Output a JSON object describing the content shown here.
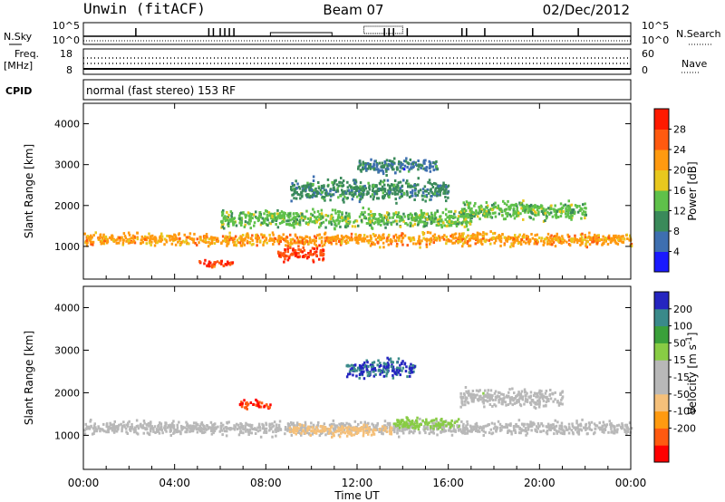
{
  "header": {
    "station": "Unwin (fitACF)",
    "beam": "Beam 07",
    "date": "02/Dec/2012"
  },
  "strips": {
    "nsky_label": "N.Sky",
    "nsky_ticks": [
      "10^5",
      "10^0"
    ],
    "nsearch_label": "N.Search",
    "nsearch_ticks": [
      "10^5",
      "10^0"
    ],
    "freq_label": "Freq.",
    "freq_unit": "[MHz]",
    "freq_ticks": [
      "18",
      "8"
    ],
    "nave_label": "Nave",
    "nave_ticks": [
      "60",
      "0"
    ],
    "cpid_label": "CPID",
    "cpid_text": "normal (fast stereo) 153 RF"
  },
  "colors": {
    "power": [
      "#1a1aff",
      "#3e6fb0",
      "#3a8a5a",
      "#5fc14a",
      "#e8c81e",
      "#ff9a10",
      "#ff5a10",
      "#ff1a00"
    ],
    "velocity": [
      "#ff0000",
      "#ff5a10",
      "#ff9a10",
      "#f5c07a",
      "#b8b8b8",
      "#b8b8b8",
      "#88cc44",
      "#3aa03a",
      "#3a8a8a",
      "#2525c0"
    ]
  },
  "chart_data": [
    {
      "type": "heatmap",
      "title": "",
      "xlabel": "",
      "ylabel": "Slant Range [km]",
      "xlim": [
        "00:00",
        "24:00"
      ],
      "ylim": [
        200,
        4500
      ],
      "yticks": [
        "1000",
        "2000",
        "3000",
        "4000"
      ],
      "colorbar": {
        "label": "Power [dB]",
        "ticks": [
          "4",
          "8",
          "12",
          "16",
          "20",
          "24",
          "28"
        ],
        "range": [
          0,
          32
        ]
      },
      "scatter_bands": [
        {
          "t0": 0.0,
          "t1": 24.0,
          "center_km": 1200,
          "width_km": 220,
          "value": 22
        },
        {
          "t0": 5.0,
          "t1": 6.5,
          "center_km": 600,
          "width_km": 120,
          "value": 28
        },
        {
          "t0": 8.5,
          "t1": 10.5,
          "center_km": 850,
          "width_km": 250,
          "value": 28
        },
        {
          "t0": 6.0,
          "t1": 17.0,
          "center_km": 1700,
          "width_km": 300,
          "value": 14
        },
        {
          "t0": 9.0,
          "t1": 16.0,
          "center_km": 2400,
          "width_km": 350,
          "value": 10
        },
        {
          "t0": 12.0,
          "t1": 15.5,
          "center_km": 3000,
          "width_km": 250,
          "value": 8
        },
        {
          "t0": 16.5,
          "t1": 22.0,
          "center_km": 1900,
          "width_km": 300,
          "value": 14
        }
      ]
    },
    {
      "type": "heatmap",
      "title": "",
      "xlabel": "Time UT",
      "ylabel": "Slant Range [km]",
      "xlim": [
        "00:00",
        "24:00"
      ],
      "xticks": [
        "00:00",
        "04:00",
        "08:00",
        "12:00",
        "16:00",
        "20:00",
        "00:00"
      ],
      "ylim": [
        200,
        4500
      ],
      "yticks": [
        "1000",
        "2000",
        "3000",
        "4000"
      ],
      "colorbar": {
        "label": "Velocity [m s^-1]",
        "ticks": [
          "200",
          "100",
          "50",
          "15",
          "-15",
          "-50",
          "-100",
          "-200"
        ],
        "range": [
          -250,
          250
        ]
      },
      "scatter_bands": [
        {
          "t0": 0.0,
          "t1": 24.0,
          "center_km": 1200,
          "width_km": 220,
          "value": 0
        },
        {
          "t0": 6.8,
          "t1": 8.2,
          "center_km": 1750,
          "width_km": 150,
          "value": -200
        },
        {
          "t0": 9.0,
          "t1": 13.5,
          "center_km": 1150,
          "width_km": 180,
          "value": -80
        },
        {
          "t0": 13.5,
          "t1": 16.5,
          "center_km": 1300,
          "width_km": 200,
          "value": 60
        },
        {
          "t0": 11.5,
          "t1": 14.5,
          "center_km": 2600,
          "width_km": 300,
          "value": 200
        },
        {
          "t0": 16.5,
          "t1": 21.0,
          "center_km": 1900,
          "width_km": 300,
          "value": 30
        }
      ]
    }
  ]
}
